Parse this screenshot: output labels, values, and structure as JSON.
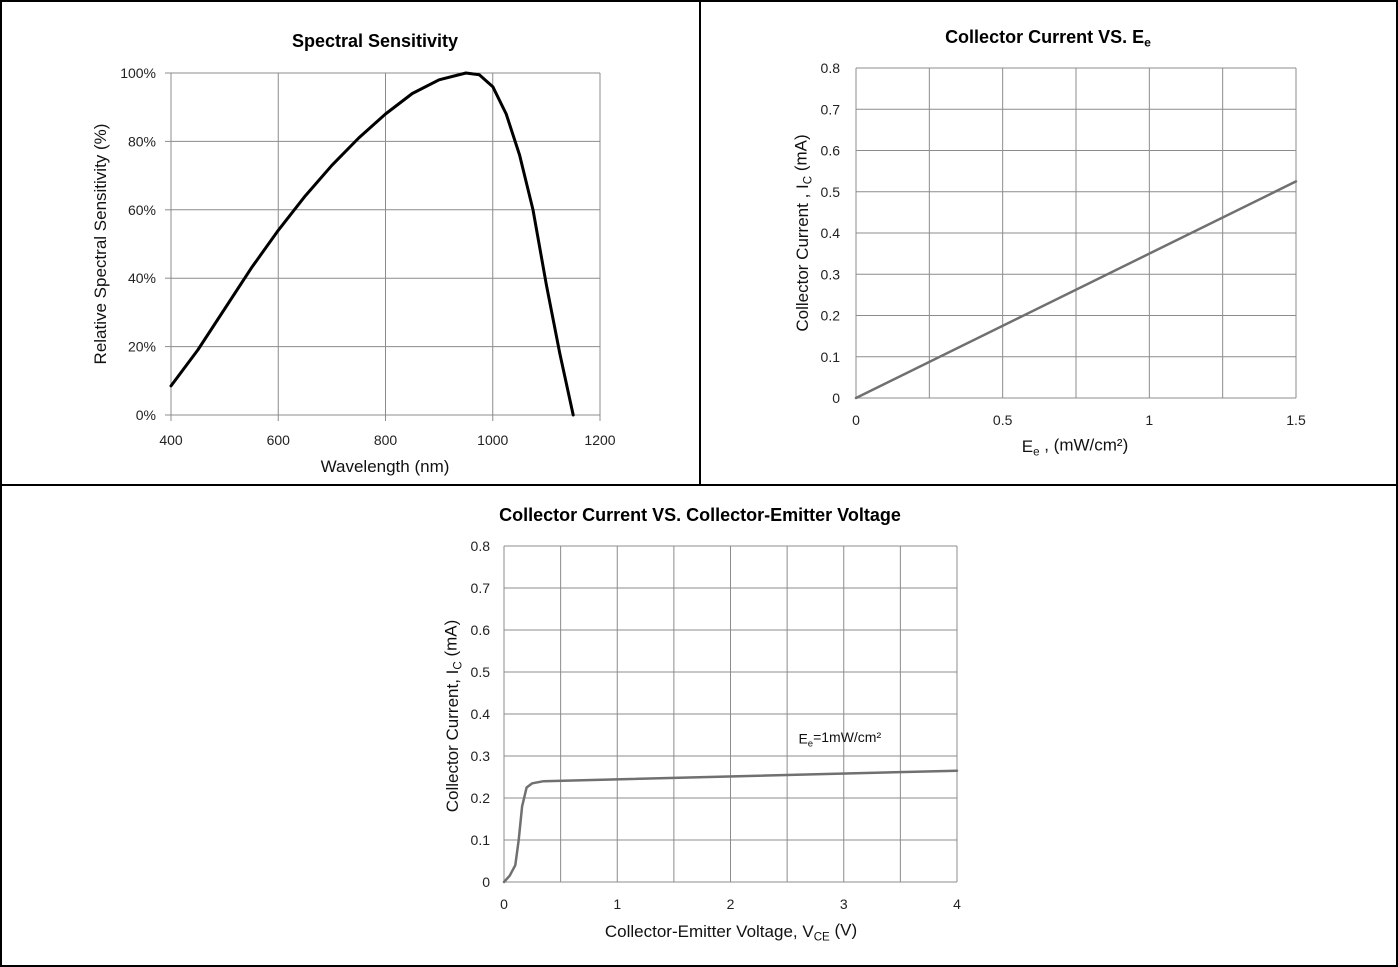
{
  "chart_data": [
    {
      "id": "spectral",
      "type": "line",
      "title": "Spectral Sensitivity",
      "xlabel": "Wavelength (nm)",
      "ylabel": "Relative Spectral Sensitivity (%)",
      "xlim": [
        400,
        1200
      ],
      "ylim": [
        0,
        100
      ],
      "xticks": [
        400,
        600,
        800,
        1000,
        1200
      ],
      "xtick_labels": [
        "400",
        "600",
        "800",
        "1000",
        "1200"
      ],
      "yticks": [
        0,
        20,
        40,
        60,
        80,
        100
      ],
      "ytick_labels": [
        "0%",
        "20%",
        "40%",
        "60%",
        "80%",
        "100%"
      ],
      "grid": true,
      "series": [
        {
          "color": "#000000",
          "x": [
            400,
            450,
            500,
            550,
            600,
            650,
            700,
            750,
            800,
            850,
            900,
            950,
            975,
            1000,
            1025,
            1050,
            1075,
            1100,
            1125,
            1150
          ],
          "y": [
            8.5,
            19,
            31,
            43,
            54,
            64,
            73,
            81,
            88,
            94,
            98,
            100,
            99.5,
            96,
            88,
            76,
            60,
            38,
            18,
            0
          ]
        }
      ]
    },
    {
      "id": "ic-ee",
      "type": "line",
      "title": "Collector Current VS. E",
      "title_sub": "e",
      "xlabel": "E",
      "xlabel_sub": "e",
      "xlabel_rest": " , (mW/cm²)",
      "ylabel": "Collector Current ,  I",
      "ylabel_sub": "C",
      "ylabel_rest": " (mA)",
      "xlim": [
        0,
        1.5
      ],
      "ylim": [
        0,
        0.8
      ],
      "xticks": [
        0,
        0.5,
        1,
        1.5
      ],
      "xtick_labels": [
        "0",
        "0.5",
        "1",
        "1.5"
      ],
      "yticks": [
        0,
        0.1,
        0.2,
        0.3,
        0.4,
        0.5,
        0.6,
        0.7,
        0.8
      ],
      "ytick_labels": [
        "0",
        "0.1",
        "0.2",
        "0.3",
        "0.4",
        "0.5",
        "0.6",
        "0.7",
        "0.8"
      ],
      "xgrid_step": 0.25,
      "grid": true,
      "series": [
        {
          "color": "#707070",
          "x": [
            0,
            1.5
          ],
          "y": [
            0,
            0.525
          ]
        }
      ]
    },
    {
      "id": "ic-vce",
      "type": "line",
      "title": "Collector Current VS. Collector-Emitter Voltage",
      "xlabel": "Collector-Emitter Voltage,  V",
      "xlabel_sub": "CE",
      "xlabel_rest": " (V)",
      "ylabel": "Collector Current, I",
      "ylabel_sub": "C",
      "ylabel_rest": " (mA)",
      "xlim": [
        0,
        4
      ],
      "ylim": [
        0,
        0.8
      ],
      "xticks": [
        0,
        1,
        2,
        3,
        4
      ],
      "xtick_labels": [
        "0",
        "1",
        "2",
        "3",
        "4"
      ],
      "yticks": [
        0,
        0.1,
        0.2,
        0.3,
        0.4,
        0.5,
        0.6,
        0.7,
        0.8
      ],
      "ytick_labels": [
        "0",
        "0.1",
        "0.2",
        "0.3",
        "0.4",
        "0.5",
        "0.6",
        "0.7",
        "0.8"
      ],
      "xgrid_step": 0.5,
      "grid": true,
      "annotation": {
        "text": "E",
        "sub": "e",
        "rest": "=1mW/cm²",
        "x": 2.6,
        "y": 0.33
      },
      "series": [
        {
          "color": "#707070",
          "x": [
            0,
            0.05,
            0.1,
            0.13,
            0.16,
            0.2,
            0.25,
            0.35,
            4
          ],
          "y": [
            0,
            0.015,
            0.04,
            0.1,
            0.18,
            0.225,
            0.235,
            0.24,
            0.265
          ]
        }
      ]
    }
  ]
}
